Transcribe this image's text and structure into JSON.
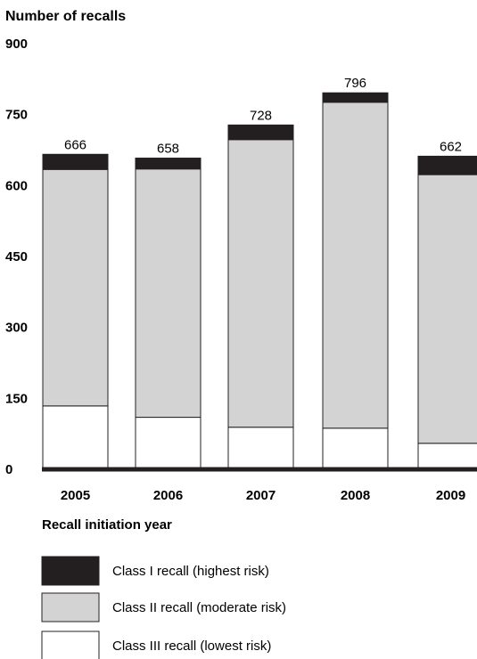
{
  "chart_data": {
    "type": "bar",
    "stacked": true,
    "ylabel": "Number of recalls",
    "xlabel": "Recall initiation year",
    "ylim": [
      0,
      900
    ],
    "yticks": [
      "0",
      "150",
      "300",
      "450",
      "600",
      "750",
      "900"
    ],
    "categories": [
      "2005",
      "2006",
      "2007",
      "2008",
      "2009"
    ],
    "totals": [
      666,
      658,
      728,
      796,
      662
    ],
    "series": [
      {
        "name": "Class III recall (lowest risk)",
        "color": "#ffffff",
        "values": [
          134,
          110,
          89,
          87,
          55
        ]
      },
      {
        "name": "Class II recall (moderate risk)",
        "color": "#d3d3d3",
        "values": [
          500,
          525,
          608,
          689,
          568
        ]
      },
      {
        "name": "Class I recall (highest risk)",
        "color": "#231f20",
        "values": [
          32,
          23,
          31,
          20,
          39
        ]
      }
    ],
    "grid": false,
    "legend_position": "bottom"
  }
}
